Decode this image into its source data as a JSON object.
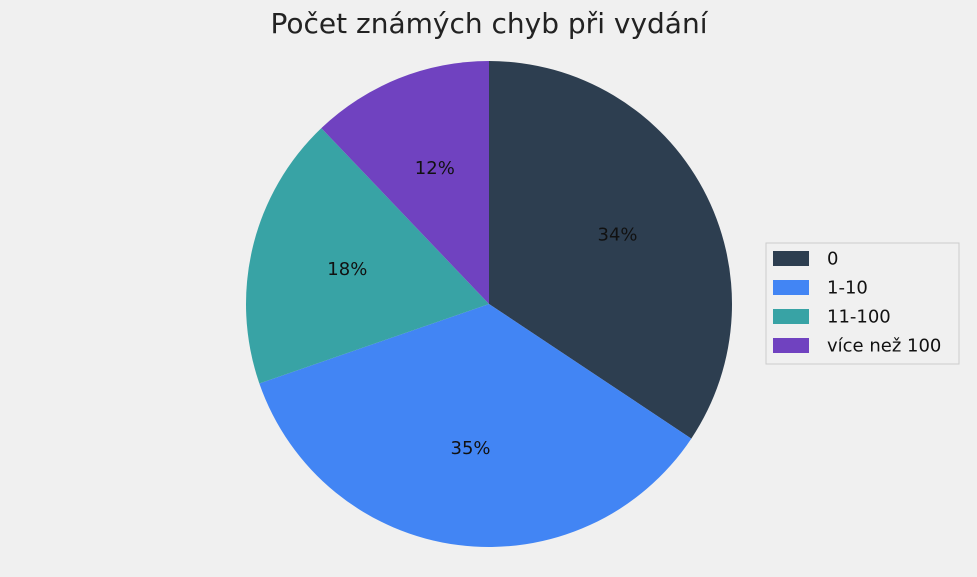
{
  "chart_data": {
    "type": "pie",
    "title": "Počet známých chyb při vydání",
    "categories": [
      "0",
      "1-10",
      "11-100",
      "více než 100"
    ],
    "values": [
      34,
      35,
      18,
      12
    ],
    "labels": [
      "34%",
      "35%",
      "18%",
      "12%"
    ],
    "colors": [
      "#2d3e50",
      "#4285f4",
      "#38a3a5",
      "#7042c0"
    ],
    "legend_position": "right",
    "start_angle_deg": 90,
    "direction": "clockwise"
  }
}
